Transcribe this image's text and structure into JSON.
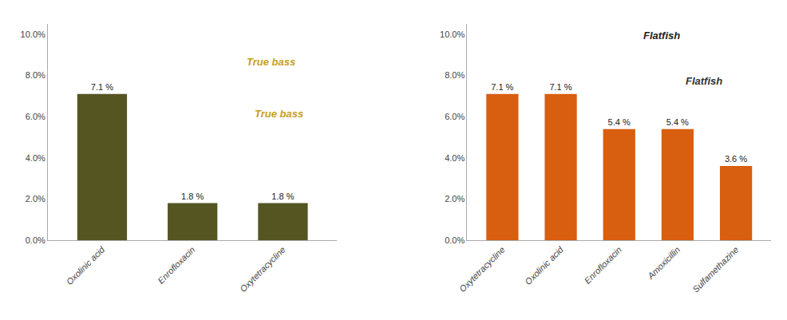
{
  "chart_data": [
    {
      "type": "bar",
      "categories": [
        "Oxolinic acid",
        "Enrofloxacin",
        "Oxytetracycline"
      ],
      "values": [
        7.1,
        1.8,
        1.8
      ],
      "value_labels": [
        "7.1 %",
        "1.8 %",
        "1.8 %"
      ],
      "data_labels": true,
      "color": "#555522",
      "ylim": [
        0,
        10.5
      ],
      "yticks": [
        {
          "value": 0.0,
          "label": "0.0%"
        },
        {
          "value": 2.0,
          "label": "2.0%"
        },
        {
          "value": 4.0,
          "label": "4.0%"
        },
        {
          "value": 6.0,
          "label": "6.0%"
        },
        {
          "value": 8.0,
          "label": "8.0%"
        },
        {
          "value": 10.0,
          "label": "10.0%"
        }
      ],
      "grid": false,
      "annotations": [
        {
          "text": "True bass",
          "color": "#c8a020"
        },
        {
          "text": "True bass",
          "color": "#c8a020"
        }
      ]
    },
    {
      "type": "bar",
      "categories": [
        "Oxytetracycline",
        "Oxolinic acid",
        "Enrofloxacin",
        "Amoxicillin",
        "Sulfamethazine"
      ],
      "values": [
        7.1,
        7.1,
        5.4,
        5.4,
        3.6
      ],
      "value_labels": [
        "7.1 %",
        "7.1 %",
        "5.4 %",
        "5.4 %",
        "3.6 %"
      ],
      "data_labels": true,
      "color": "#d85e10",
      "ylim": [
        0,
        10.5
      ],
      "yticks": [
        {
          "value": 0.0,
          "label": "0.0%"
        },
        {
          "value": 2.0,
          "label": "2.0%"
        },
        {
          "value": 4.0,
          "label": "4.0%"
        },
        {
          "value": 6.0,
          "label": "6.0%"
        },
        {
          "value": 8.0,
          "label": "8.0%"
        },
        {
          "value": 10.0,
          "label": "10.0%"
        }
      ],
      "grid": false,
      "annotations": [
        {
          "text": "Flatfish",
          "color": "#333333"
        },
        {
          "text": "Flatfish",
          "color": "#222222"
        }
      ]
    }
  ]
}
